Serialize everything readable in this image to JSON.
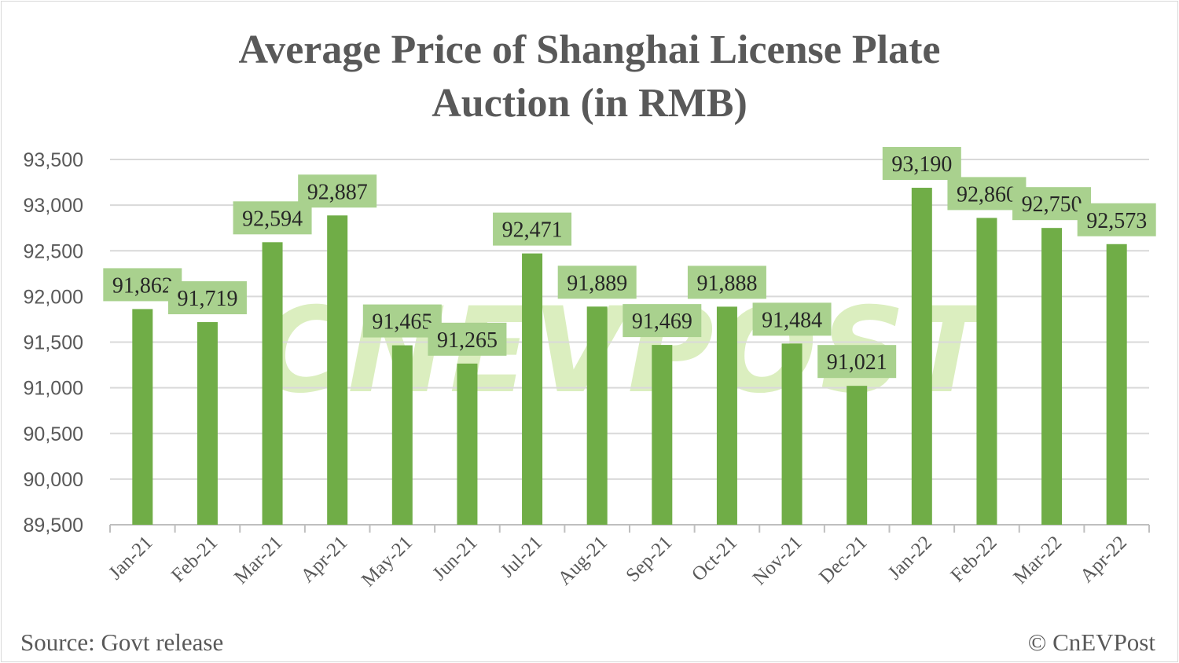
{
  "chart_data": {
    "type": "bar",
    "title_line1": "Average Price of Shanghai License Plate",
    "title_line2": "Auction (in RMB)",
    "categories": [
      "Jan-21",
      "Feb-21",
      "Mar-21",
      "Apr-21",
      "May-21",
      "Jun-21",
      "Jul-21",
      "Aug-21",
      "Sep-21",
      "Oct-21",
      "Nov-21",
      "Dec-21",
      "Jan-22",
      "Feb-22",
      "Mar-22",
      "Apr-22"
    ],
    "values": [
      91862,
      91719,
      92594,
      92887,
      91465,
      91265,
      92471,
      91889,
      91469,
      91888,
      91484,
      91021,
      93190,
      92860,
      92750,
      92573
    ],
    "ylim": [
      89500,
      93500
    ],
    "yticks": [
      "89,500",
      "90,000",
      "90,500",
      "91,000",
      "91,500",
      "92,000",
      "92,500",
      "93,000",
      "93,500"
    ],
    "grid": true,
    "legend": "none",
    "bar_color": "#70ad47",
    "label_bg_color": "#a9d18e",
    "watermark": "CnEVPost"
  },
  "footer": {
    "source": "Source: Govt release",
    "credit": "© CnEVPost"
  }
}
